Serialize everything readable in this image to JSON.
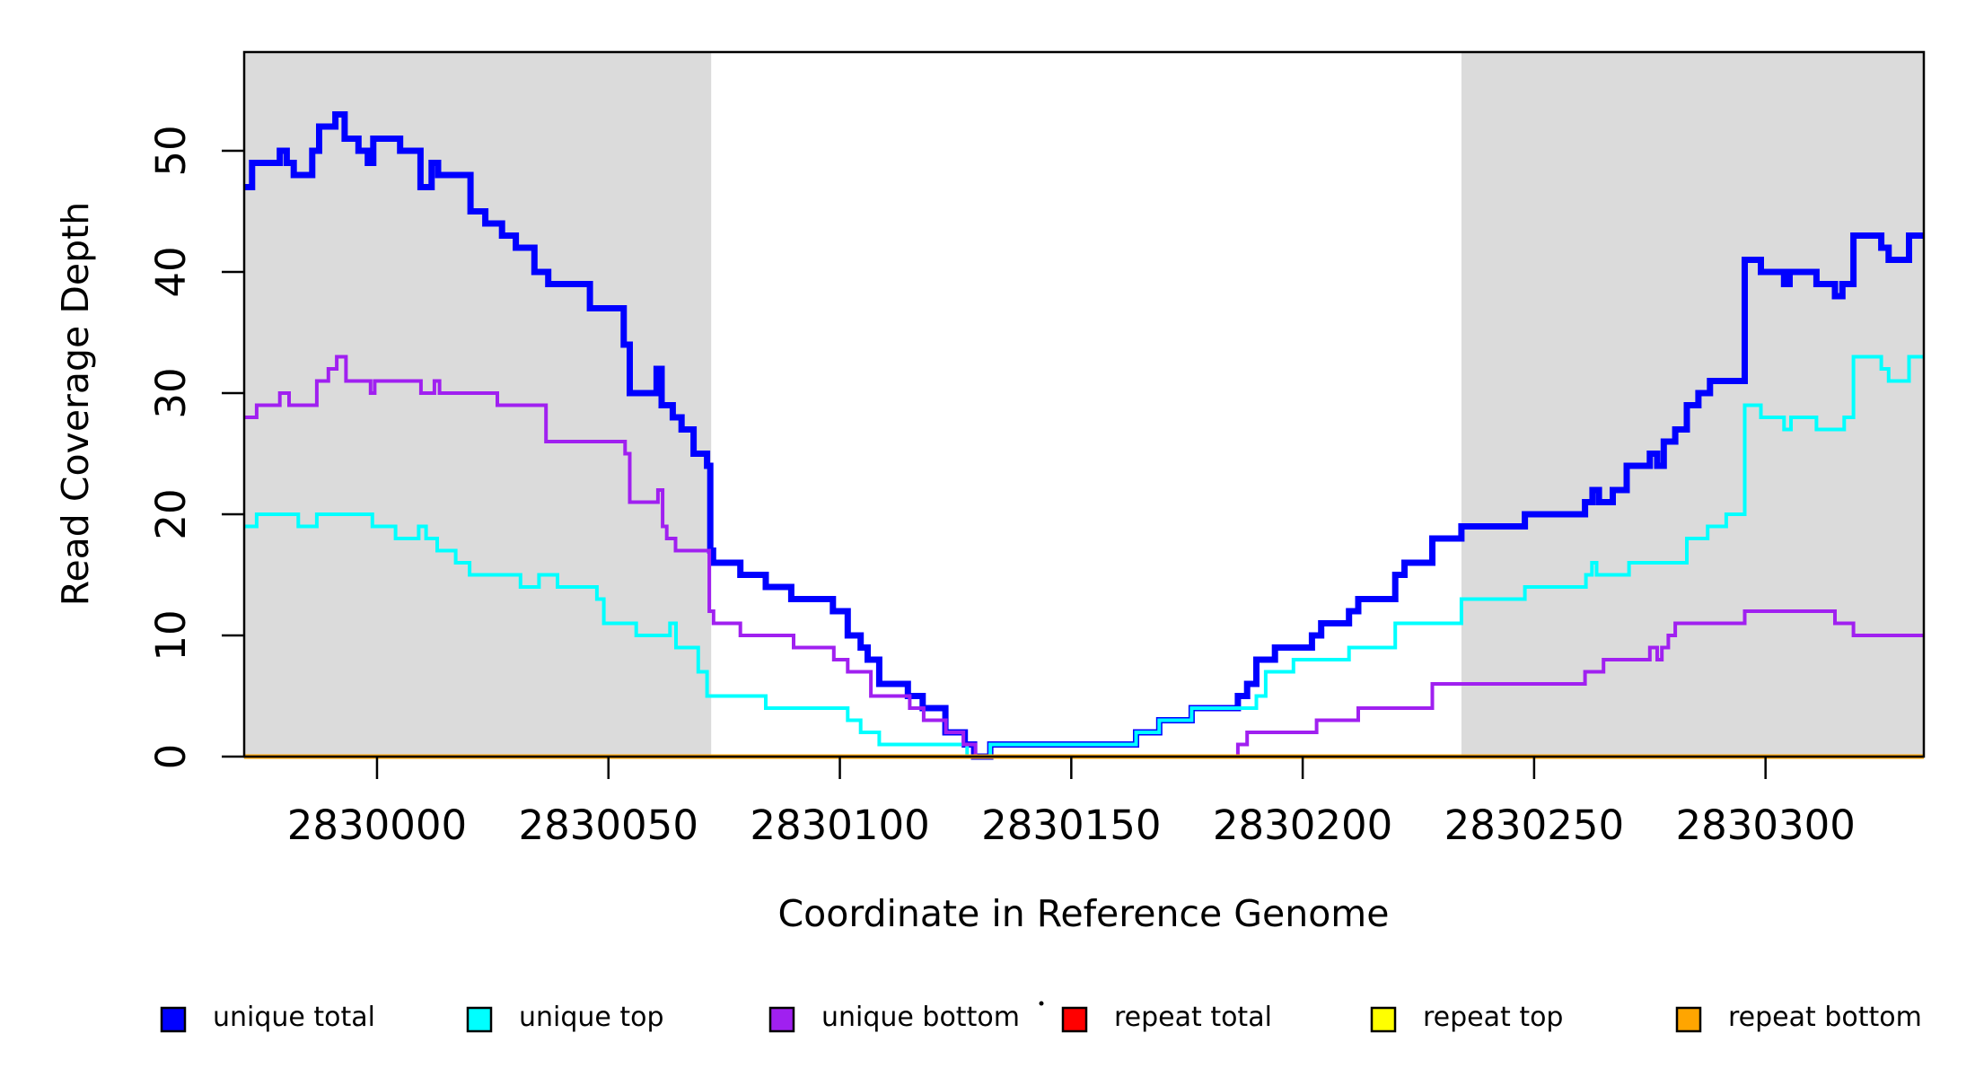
{
  "figure": {
    "background": "#ffffff",
    "plot_box_color": "#000000",
    "shade_color": "#DBDBDB"
  },
  "chart_data": {
    "type": "line",
    "subtype": "step-coverage-plot",
    "title": "",
    "xlabel": "Coordinate in Reference Genome",
    "ylabel": "Read Coverage Depth",
    "xlim": [
      2829971.3,
      2830334.2
    ],
    "ylim": [
      0,
      58.15
    ],
    "grid": false,
    "x_ticks": [
      2830000,
      2830050,
      2830100,
      2830150,
      2830200,
      2830250,
      2830300
    ],
    "x_tick_labels": [
      "2830000",
      "2830050",
      "2830100",
      "2830150",
      "2830200",
      "2830250",
      "2830300"
    ],
    "y_ticks": [
      0,
      10,
      20,
      30,
      40,
      50
    ],
    "y_tick_labels": [
      "0",
      "10",
      "20",
      "30",
      "40",
      "50"
    ],
    "shaded_regions": [
      {
        "from": 2829971.3,
        "to": 2830072.2
      },
      {
        "from": 2830234.3,
        "to": 2830334.2
      }
    ],
    "series": [
      {
        "name": "unique total",
        "color": "#0000FF",
        "width": 7,
        "steps": [
          [
            2829971.3,
            47
          ],
          [
            2829973,
            49
          ],
          [
            2829979,
            50
          ],
          [
            2829980.5,
            49
          ],
          [
            2829982,
            48
          ],
          [
            2829986,
            50
          ],
          [
            2829987.5,
            52
          ],
          [
            2829991,
            53
          ],
          [
            2829993,
            51
          ],
          [
            2829996,
            50
          ],
          [
            2829998,
            49
          ],
          [
            2829999.2,
            51
          ],
          [
            2830005,
            50
          ],
          [
            2830009.4,
            47
          ],
          [
            2830011.8,
            49
          ],
          [
            2830013.2,
            48
          ],
          [
            2830020.2,
            45
          ],
          [
            2830023.4,
            44
          ],
          [
            2830027,
            43
          ],
          [
            2830030,
            42
          ],
          [
            2830034,
            40
          ],
          [
            2830037,
            39
          ],
          [
            2830046,
            37
          ],
          [
            2830053.3,
            34
          ],
          [
            2830054.6,
            30
          ],
          [
            2830060.4,
            32
          ],
          [
            2830061.5,
            29
          ],
          [
            2830063.9,
            28
          ],
          [
            2830065.8,
            27
          ],
          [
            2830068.4,
            25
          ],
          [
            2830071.3,
            24
          ],
          [
            2830072,
            17
          ],
          [
            2830072.6,
            16
          ],
          [
            2830078.5,
            15
          ],
          [
            2830084,
            14
          ],
          [
            2830089.5,
            13
          ],
          [
            2830098.5,
            12
          ],
          [
            2830101.7,
            10
          ],
          [
            2830104.5,
            9
          ],
          [
            2830106,
            8
          ],
          [
            2830108.5,
            6
          ],
          [
            2830114.7,
            5
          ],
          [
            2830117.9,
            4
          ],
          [
            2830122.8,
            2
          ],
          [
            2830127,
            1
          ],
          [
            2830129,
            0
          ],
          [
            2830132.5,
            1
          ],
          [
            2830164,
            2
          ],
          [
            2830169,
            3
          ],
          [
            2830176,
            4
          ],
          [
            2830186,
            5
          ],
          [
            2830188,
            6
          ],
          [
            2830190,
            8
          ],
          [
            2830194,
            9
          ],
          [
            2830202,
            10
          ],
          [
            2830204,
            11
          ],
          [
            2830210,
            12
          ],
          [
            2830212,
            13
          ],
          [
            2830220,
            15
          ],
          [
            2830222,
            16
          ],
          [
            2830228,
            18
          ],
          [
            2830234.3,
            19
          ],
          [
            2830248,
            20
          ],
          [
            2830261,
            21
          ],
          [
            2830262.6,
            22
          ],
          [
            2830264,
            21
          ],
          [
            2830267,
            22
          ],
          [
            2830270,
            24
          ],
          [
            2830275,
            25
          ],
          [
            2830276.6,
            24
          ],
          [
            2830278,
            26
          ],
          [
            2830280.5,
            27
          ],
          [
            2830283,
            29
          ],
          [
            2830285.5,
            30
          ],
          [
            2830288,
            31
          ],
          [
            2830295.5,
            41
          ],
          [
            2830299,
            40
          ],
          [
            2830304,
            39
          ],
          [
            2830305.2,
            40
          ],
          [
            2830311,
            39
          ],
          [
            2830315,
            38
          ],
          [
            2830316.6,
            39
          ],
          [
            2830319,
            43
          ],
          [
            2830325,
            42
          ],
          [
            2830326.6,
            41
          ],
          [
            2830331,
            43
          ]
        ]
      },
      {
        "name": "unique top",
        "color": "#00FFFF",
        "width": 4,
        "steps": [
          [
            2829971.3,
            19
          ],
          [
            2829974,
            20
          ],
          [
            2829983,
            19
          ],
          [
            2829987,
            20
          ],
          [
            2829999,
            19
          ],
          [
            2830004,
            18
          ],
          [
            2830009,
            19
          ],
          [
            2830010.6,
            18
          ],
          [
            2830013,
            17
          ],
          [
            2830017,
            16
          ],
          [
            2830020,
            15
          ],
          [
            2830031,
            14
          ],
          [
            2830035,
            15
          ],
          [
            2830039,
            14
          ],
          [
            2830047.5,
            13
          ],
          [
            2830049,
            11
          ],
          [
            2830056,
            10
          ],
          [
            2830063.3,
            11
          ],
          [
            2830064.6,
            9
          ],
          [
            2830069.4,
            7
          ],
          [
            2830071.3,
            5
          ],
          [
            2830084,
            4
          ],
          [
            2830101.7,
            3
          ],
          [
            2830104.5,
            2
          ],
          [
            2830108.5,
            1
          ],
          [
            2830127.5,
            0
          ],
          [
            2830132.5,
            1
          ],
          [
            2830164,
            2
          ],
          [
            2830169,
            3
          ],
          [
            2830176,
            4
          ],
          [
            2830190,
            5
          ],
          [
            2830192,
            7
          ],
          [
            2830198,
            8
          ],
          [
            2830210,
            9
          ],
          [
            2830220,
            11
          ],
          [
            2830234.3,
            13
          ],
          [
            2830248,
            14
          ],
          [
            2830261.2,
            15
          ],
          [
            2830262.5,
            16
          ],
          [
            2830263.5,
            15
          ],
          [
            2830270.5,
            16
          ],
          [
            2830283,
            18
          ],
          [
            2830287.5,
            19
          ],
          [
            2830291.5,
            20
          ],
          [
            2830295.5,
            29
          ],
          [
            2830299,
            28
          ],
          [
            2830304,
            27
          ],
          [
            2830305.5,
            28
          ],
          [
            2830311,
            27
          ],
          [
            2830317,
            28
          ],
          [
            2830319,
            33
          ],
          [
            2830325,
            32
          ],
          [
            2830326.6,
            31
          ],
          [
            2830331,
            33
          ]
        ]
      },
      {
        "name": "unique bottom",
        "color": "#A020F0",
        "width": 4,
        "steps": [
          [
            2829971.3,
            28
          ],
          [
            2829974,
            29
          ],
          [
            2829979,
            30
          ],
          [
            2829981,
            29
          ],
          [
            2829987,
            31
          ],
          [
            2829989.5,
            32
          ],
          [
            2829991.3,
            33
          ],
          [
            2829993.3,
            31
          ],
          [
            2829998.6,
            30
          ],
          [
            2829999.5,
            31
          ],
          [
            2830009.5,
            30
          ],
          [
            2830012.4,
            31
          ],
          [
            2830013.5,
            30
          ],
          [
            2830026,
            29
          ],
          [
            2830036.5,
            26
          ],
          [
            2830053.6,
            25
          ],
          [
            2830054.6,
            21
          ],
          [
            2830060.7,
            22
          ],
          [
            2830061.7,
            19
          ],
          [
            2830062.6,
            18
          ],
          [
            2830064.5,
            17
          ],
          [
            2830071.8,
            12
          ],
          [
            2830072.7,
            11
          ],
          [
            2830078.5,
            10
          ],
          [
            2830090,
            9
          ],
          [
            2830098.7,
            8
          ],
          [
            2830101.7,
            7
          ],
          [
            2830106.7,
            5
          ],
          [
            2830115.1,
            4
          ],
          [
            2830118.1,
            3
          ],
          [
            2830122.9,
            2
          ],
          [
            2830126.7,
            1
          ],
          [
            2830129.3,
            0
          ],
          [
            2830186,
            1
          ],
          [
            2830188,
            2
          ],
          [
            2830203,
            3
          ],
          [
            2830212,
            4
          ],
          [
            2830228,
            6
          ],
          [
            2830261,
            7
          ],
          [
            2830265,
            8
          ],
          [
            2830275,
            9
          ],
          [
            2830276.6,
            8
          ],
          [
            2830277.6,
            9
          ],
          [
            2830279,
            10
          ],
          [
            2830280.5,
            11
          ],
          [
            2830295.5,
            12
          ],
          [
            2830315,
            11
          ],
          [
            2830319,
            10
          ]
        ]
      },
      {
        "name": "repeat total",
        "color": "#FF0000",
        "width": 4.5,
        "steps": [
          [
            2829971.3,
            0
          ]
        ]
      },
      {
        "name": "repeat top",
        "color": "#FFFF00",
        "width": 4.5,
        "steps": [
          [
            2829971.3,
            0
          ]
        ]
      },
      {
        "name": "repeat bottom",
        "color": "#FFA500",
        "width": 5,
        "steps": [
          [
            2829971.3,
            0
          ]
        ]
      }
    ],
    "legend_position": "bottom"
  },
  "legend": {
    "items": [
      {
        "label": "unique total",
        "color": "#0000FF"
      },
      {
        "label": "unique top",
        "color": "#00FFFF"
      },
      {
        "label": "unique bottom",
        "color": "#A020F0"
      },
      {
        "label": "repeat total",
        "color": "#FF0000"
      },
      {
        "label": "repeat top",
        "color": "#FFFF00"
      },
      {
        "label": "repeat bottom",
        "color": "#FFA500"
      }
    ]
  }
}
